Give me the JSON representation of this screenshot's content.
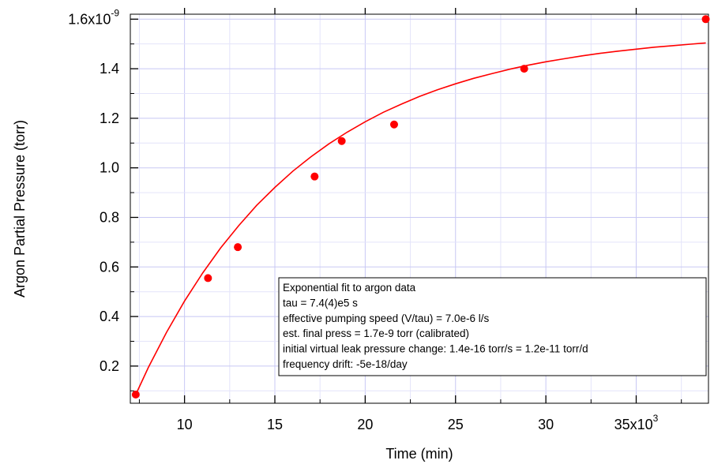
{
  "chart_data": {
    "type": "scatter",
    "xlabel": "Time (min)",
    "ylabel": "Argon Partial Pressure (torr)",
    "xlim": [
      7000,
      39000
    ],
    "ylim": [
      5e-11,
      1.62e-09
    ],
    "grid": true,
    "x_ticks": [
      {
        "value": 10000,
        "label": "10"
      },
      {
        "value": 15000,
        "label": "15"
      },
      {
        "value": 20000,
        "label": "20"
      },
      {
        "value": 25000,
        "label": "25"
      },
      {
        "value": 30000,
        "label": "30"
      },
      {
        "value": 35000,
        "label": "35x10",
        "sup": "3"
      }
    ],
    "y_ticks": [
      {
        "value": 2e-10,
        "label": "0.2"
      },
      {
        "value": 4e-10,
        "label": "0.4"
      },
      {
        "value": 6e-10,
        "label": "0.6"
      },
      {
        "value": 8e-10,
        "label": "0.8"
      },
      {
        "value": 1e-09,
        "label": "1.0"
      },
      {
        "value": 1.2e-09,
        "label": "1.2"
      },
      {
        "value": 1.4e-09,
        "label": "1.4"
      },
      {
        "value": 1.6e-09,
        "label": "1.6x10",
        "sup": "-9"
      }
    ],
    "series": [
      {
        "type": "scatter",
        "color": "#ff0000",
        "points": [
          {
            "x": 7300,
            "y": 8.5e-11
          },
          {
            "x": 11300,
            "y": 5.55e-10
          },
          {
            "x": 12950,
            "y": 6.8e-10
          },
          {
            "x": 17200,
            "y": 9.65e-10
          },
          {
            "x": 18700,
            "y": 1.108e-09
          },
          {
            "x": 21600,
            "y": 1.175e-09
          },
          {
            "x": 28800,
            "y": 1.4e-09
          },
          {
            "x": 38850,
            "y": 1.6e-09
          }
        ]
      },
      {
        "type": "line",
        "color": "#ff0000",
        "fit": "exponential",
        "x": [
          7300,
          8000,
          9000,
          10000,
          11000,
          12000,
          13000,
          14000,
          15000,
          16000,
          17000,
          18000,
          19000,
          20000,
          21000,
          22000,
          23000,
          24000,
          25000,
          26000,
          27000,
          28000,
          29000,
          30000,
          31000,
          32000,
          33000,
          34000,
          35000,
          36000,
          37000,
          38000,
          38850
        ],
        "y": [
          8.5e-11,
          1.95e-10,
          3.36e-10,
          4.62e-10,
          5.75e-10,
          6.77e-10,
          7.67e-10,
          8.49e-10,
          9.21e-10,
          9.87e-10,
          1.045e-09,
          1.097e-09,
          1.144e-09,
          1.186e-09,
          1.224e-09,
          1.257e-09,
          1.288e-09,
          1.315e-09,
          1.339e-09,
          1.361e-09,
          1.38e-09,
          1.398e-09,
          1.414e-09,
          1.428e-09,
          1.44e-09,
          1.452e-09,
          1.462e-09,
          1.471e-09,
          1.479e-09,
          1.487e-09,
          1.493e-09,
          1.499e-09,
          1.504e-09
        ]
      }
    ],
    "annotation": {
      "lines": [
        "Exponential fit to argon data",
        "tau = 7.4(4)e5 s",
        "effective pumping speed (V/tau) = 7.0e-6 l/s",
        "est. final press = 1.7e-9 torr (calibrated)",
        "initial virtual leak pressure change: 1.4e-16 torr/s = 1.2e-11 torr/d",
        "frequency drift:  -5e-18/day"
      ]
    }
  }
}
